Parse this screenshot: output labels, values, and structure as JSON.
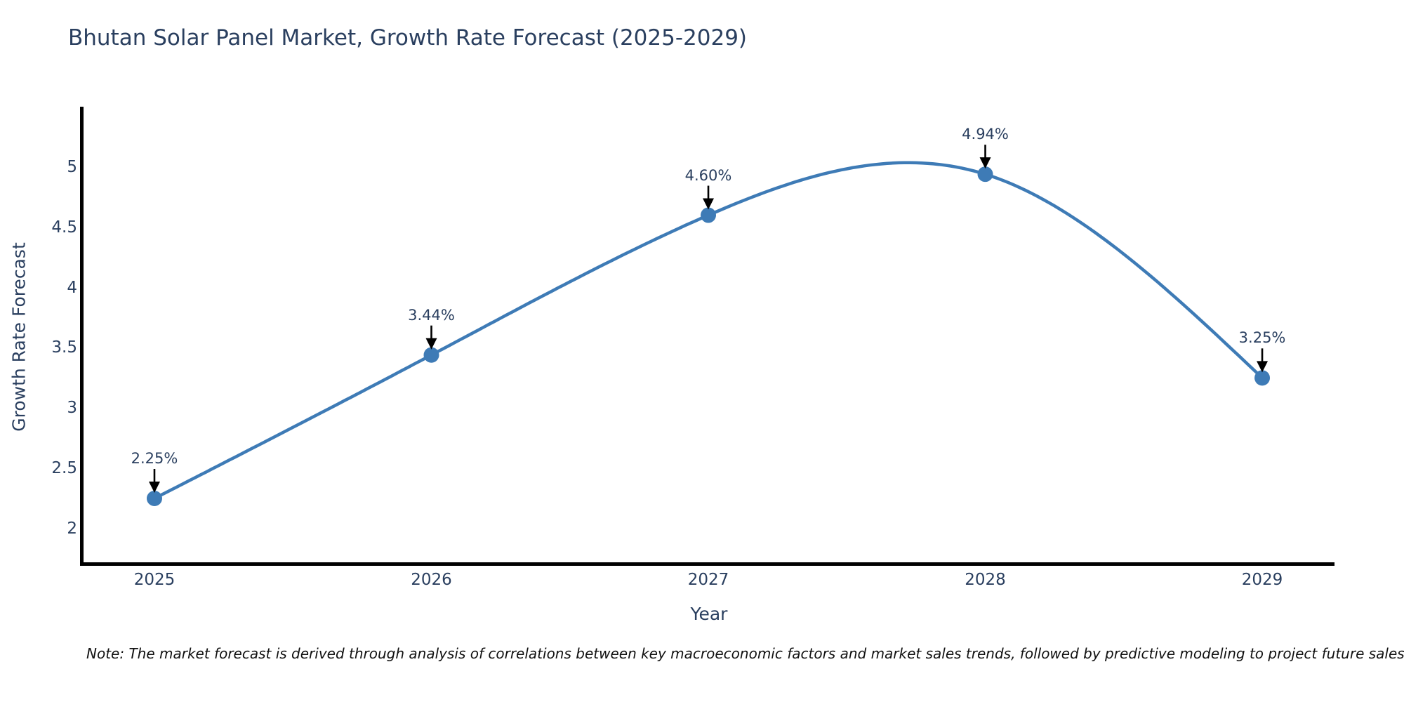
{
  "chart_data": {
    "type": "line",
    "title": "Bhutan Solar Panel Market, Growth Rate Forecast (2025-2029)",
    "xlabel": "Year",
    "ylabel": "Growth Rate Forecast",
    "x": [
      2025,
      2026,
      2027,
      2028,
      2029
    ],
    "categories": [
      "2025",
      "2026",
      "2027",
      "2028",
      "2029"
    ],
    "values": [
      2.25,
      3.44,
      4.6,
      4.94,
      3.25
    ],
    "point_labels": [
      "2.25%",
      "3.44%",
      "4.60%",
      "4.94%",
      "3.25%"
    ],
    "yticks": [
      2,
      2.5,
      3,
      3.5,
      4,
      4.5,
      5
    ],
    "ytick_labels": [
      "2",
      "2.5",
      "3",
      "3.5",
      "4",
      "4.5",
      "5"
    ],
    "xlim": [
      2024.744,
      2029.261
    ],
    "ylim": [
      1.691,
      5.5
    ],
    "grid": false,
    "legend": "none",
    "line_shape": "natural-spline",
    "note": "Note: The market forecast is derived through analysis of correlations between key macroeconomic factors and market sales trends, followed by predictive modeling to project future sales",
    "colors": {
      "line": "#3e7bb6",
      "marker": "#3e7bb6",
      "axis": "#000000",
      "label_text": "#2a3f5f",
      "annotation_arrow": "#000000",
      "note_text": "#111111",
      "background": "#ffffff"
    }
  }
}
